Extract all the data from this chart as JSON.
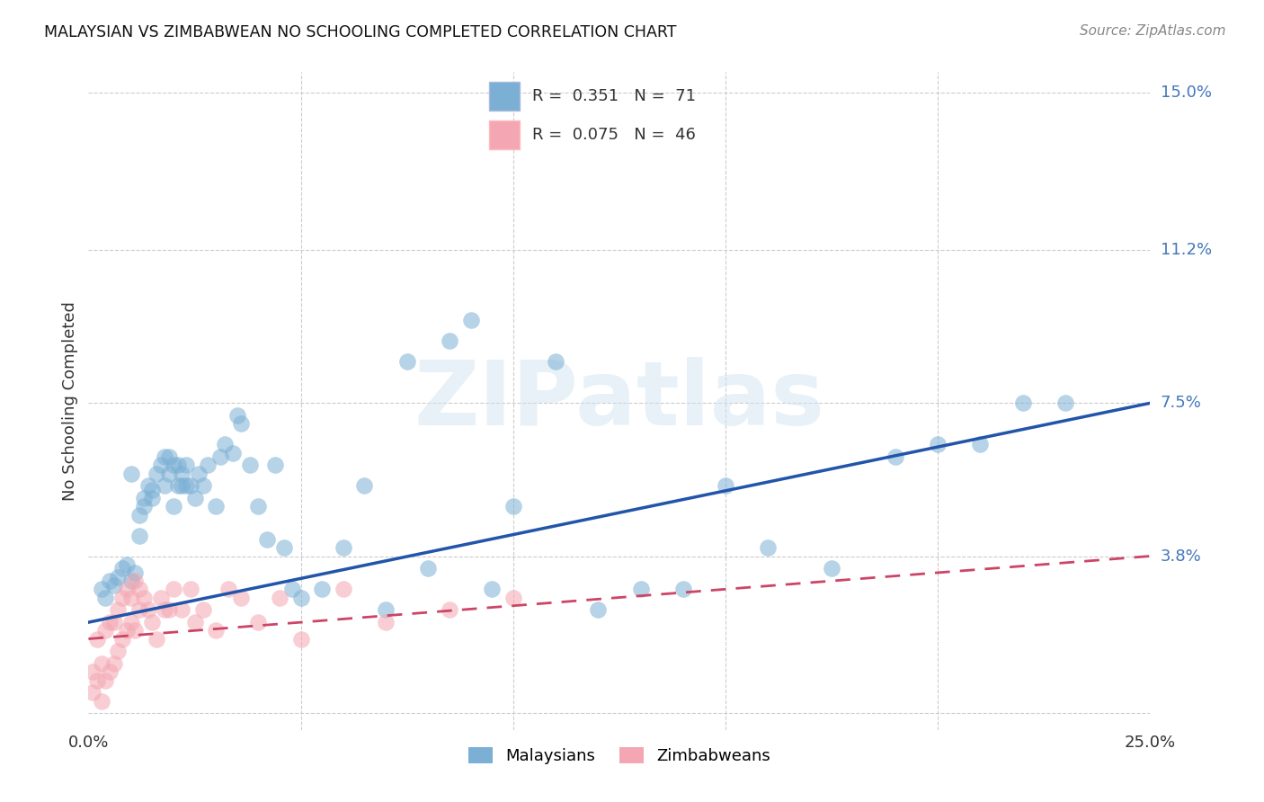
{
  "title": "MALAYSIAN VS ZIMBABWEAN NO SCHOOLING COMPLETED CORRELATION CHART",
  "source": "Source: ZipAtlas.com",
  "ylabel": "No Schooling Completed",
  "xlim": [
    0.0,
    0.25
  ],
  "ylim": [
    -0.004,
    0.155
  ],
  "blue_color": "#7BAFD4",
  "pink_color": "#F4A7B2",
  "line_blue_color": "#2255AA",
  "line_pink_color": "#CC4466",
  "watermark": "ZIPatlas",
  "background_color": "#ffffff",
  "legend_text_color": "#333333",
  "axis_label_color": "#4477BB",
  "ytick_vals": [
    0.0,
    0.038,
    0.075,
    0.112,
    0.15
  ],
  "ytick_labels": [
    "",
    "3.8%",
    "7.5%",
    "11.2%",
    "15.0%"
  ],
  "xtick_vals": [
    0.0,
    0.05,
    0.1,
    0.15,
    0.2,
    0.25
  ],
  "xtick_labels": [
    "0.0%",
    "",
    "",
    "",
    "",
    "25.0%"
  ],
  "blue_line_x0": 0.0,
  "blue_line_y0": 0.022,
  "blue_line_x1": 0.25,
  "blue_line_y1": 0.075,
  "pink_line_x0": 0.0,
  "pink_line_y0": 0.018,
  "pink_line_x1": 0.25,
  "pink_line_y1": 0.038,
  "mal_x": [
    0.003,
    0.004,
    0.005,
    0.006,
    0.007,
    0.008,
    0.009,
    0.01,
    0.01,
    0.011,
    0.012,
    0.012,
    0.013,
    0.013,
    0.014,
    0.015,
    0.015,
    0.016,
    0.017,
    0.018,
    0.018,
    0.019,
    0.019,
    0.02,
    0.02,
    0.021,
    0.021,
    0.022,
    0.022,
    0.023,
    0.023,
    0.024,
    0.025,
    0.026,
    0.027,
    0.028,
    0.03,
    0.031,
    0.032,
    0.034,
    0.035,
    0.036,
    0.038,
    0.04,
    0.042,
    0.044,
    0.046,
    0.048,
    0.05,
    0.055,
    0.06,
    0.065,
    0.07,
    0.075,
    0.08,
    0.085,
    0.09,
    0.095,
    0.1,
    0.11,
    0.12,
    0.13,
    0.14,
    0.15,
    0.16,
    0.175,
    0.19,
    0.2,
    0.21,
    0.22,
    0.23
  ],
  "mal_y": [
    0.03,
    0.028,
    0.032,
    0.031,
    0.033,
    0.035,
    0.036,
    0.032,
    0.058,
    0.034,
    0.048,
    0.043,
    0.052,
    0.05,
    0.055,
    0.054,
    0.052,
    0.058,
    0.06,
    0.062,
    0.055,
    0.058,
    0.062,
    0.05,
    0.06,
    0.055,
    0.06,
    0.055,
    0.058,
    0.055,
    0.06,
    0.055,
    0.052,
    0.058,
    0.055,
    0.06,
    0.05,
    0.062,
    0.065,
    0.063,
    0.072,
    0.07,
    0.06,
    0.05,
    0.042,
    0.06,
    0.04,
    0.03,
    0.028,
    0.03,
    0.04,
    0.055,
    0.025,
    0.085,
    0.035,
    0.09,
    0.095,
    0.03,
    0.05,
    0.085,
    0.025,
    0.03,
    0.03,
    0.055,
    0.04,
    0.035,
    0.062,
    0.065,
    0.065,
    0.075,
    0.075
  ],
  "zim_x": [
    0.001,
    0.001,
    0.002,
    0.002,
    0.003,
    0.003,
    0.004,
    0.004,
    0.005,
    0.005,
    0.006,
    0.006,
    0.007,
    0.007,
    0.008,
    0.008,
    0.009,
    0.009,
    0.01,
    0.01,
    0.011,
    0.011,
    0.012,
    0.012,
    0.013,
    0.014,
    0.015,
    0.016,
    0.017,
    0.018,
    0.019,
    0.02,
    0.022,
    0.024,
    0.025,
    0.027,
    0.03,
    0.033,
    0.036,
    0.04,
    0.045,
    0.05,
    0.06,
    0.07,
    0.085,
    0.1
  ],
  "zim_y": [
    0.005,
    0.01,
    0.008,
    0.018,
    0.003,
    0.012,
    0.008,
    0.02,
    0.01,
    0.022,
    0.012,
    0.022,
    0.015,
    0.025,
    0.018,
    0.028,
    0.02,
    0.03,
    0.022,
    0.028,
    0.02,
    0.032,
    0.025,
    0.03,
    0.028,
    0.025,
    0.022,
    0.018,
    0.028,
    0.025,
    0.025,
    0.03,
    0.025,
    0.03,
    0.022,
    0.025,
    0.02,
    0.03,
    0.028,
    0.022,
    0.028,
    0.018,
    0.03,
    0.022,
    0.025,
    0.028
  ]
}
